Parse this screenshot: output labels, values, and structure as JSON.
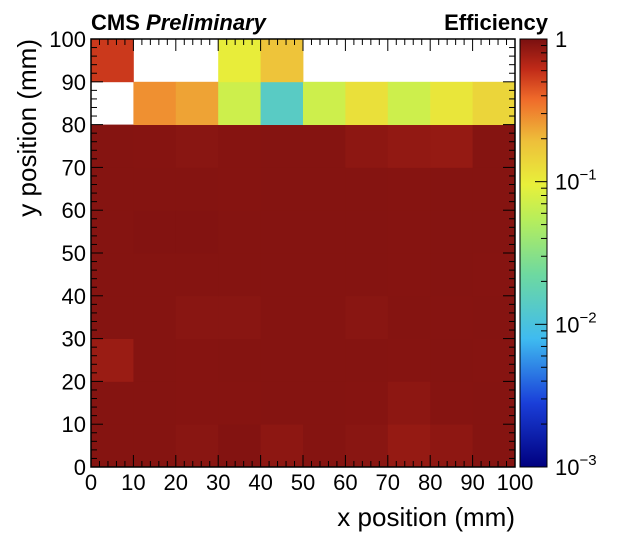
{
  "chart_data": {
    "type": "heatmap",
    "experiment_label": "CMS",
    "status_label": "Preliminary",
    "zlabel": "Efficiency",
    "xlabel": "x position (mm)",
    "ylabel": "y position (mm)",
    "xlim": [
      0,
      100
    ],
    "ylim": [
      0,
      100
    ],
    "zlim": [
      0.001,
      1
    ],
    "z_scale": "log",
    "x_bins": [
      0,
      10,
      20,
      30,
      40,
      50,
      60,
      70,
      80,
      90,
      100
    ],
    "y_bins": [
      0,
      10,
      20,
      30,
      40,
      50,
      60,
      70,
      80,
      90,
      100
    ],
    "x_ticks": [
      "0",
      "10",
      "20",
      "30",
      "40",
      "50",
      "60",
      "70",
      "80",
      "90",
      "100"
    ],
    "y_ticks": [
      "0",
      "10",
      "20",
      "30",
      "40",
      "50",
      "60",
      "70",
      "80",
      "90",
      "100"
    ],
    "z_ticks": [
      {
        "base": "1",
        "exp": "",
        "value": 1
      },
      {
        "base": "10",
        "exp": "−1",
        "value": 0.1
      },
      {
        "base": "10",
        "exp": "−2",
        "value": 0.01
      },
      {
        "base": "10",
        "exp": "−3",
        "value": 0.001
      }
    ],
    "z_values": [
      [
        0.93,
        0.93,
        0.9,
        0.94,
        0.88,
        0.93,
        0.9,
        0.83,
        0.87,
        0.93
      ],
      [
        0.93,
        0.93,
        0.92,
        0.92,
        0.93,
        0.93,
        0.92,
        0.88,
        0.92,
        0.93
      ],
      [
        0.8,
        0.93,
        0.92,
        0.93,
        0.93,
        0.93,
        0.93,
        0.92,
        0.93,
        0.92
      ],
      [
        0.93,
        0.93,
        0.9,
        0.9,
        0.93,
        0.93,
        0.9,
        0.93,
        0.92,
        0.93
      ],
      [
        0.93,
        0.93,
        0.93,
        0.93,
        0.93,
        0.93,
        0.93,
        0.92,
        0.93,
        0.92
      ],
      [
        0.93,
        0.94,
        0.94,
        0.93,
        0.93,
        0.93,
        0.93,
        0.92,
        0.93,
        0.93
      ],
      [
        0.93,
        0.93,
        0.93,
        0.92,
        0.93,
        0.93,
        0.93,
        0.92,
        0.93,
        0.93
      ],
      [
        0.93,
        0.92,
        0.9,
        0.92,
        0.93,
        0.93,
        0.88,
        0.85,
        0.83,
        0.93
      ],
      [
        null,
        0.28,
        0.24,
        0.07,
        0.014,
        0.07,
        0.12,
        0.07,
        0.11,
        0.14
      ],
      [
        0.55,
        null,
        null,
        0.1,
        0.18,
        null,
        null,
        null,
        null,
        null
      ]
    ],
    "colormap": [
      {
        "t": 0.0,
        "color": "#00007f"
      },
      {
        "t": 0.15,
        "color": "#1a3fd9"
      },
      {
        "t": 0.3,
        "color": "#3fbbf0"
      },
      {
        "t": 0.45,
        "color": "#6ed9a0"
      },
      {
        "t": 0.58,
        "color": "#b8ee5a"
      },
      {
        "t": 0.66,
        "color": "#e8f03a"
      },
      {
        "t": 0.76,
        "color": "#eec03a"
      },
      {
        "t": 0.86,
        "color": "#ef6a2a"
      },
      {
        "t": 0.93,
        "color": "#c02a18"
      },
      {
        "t": 1.0,
        "color": "#7a1010"
      }
    ]
  }
}
